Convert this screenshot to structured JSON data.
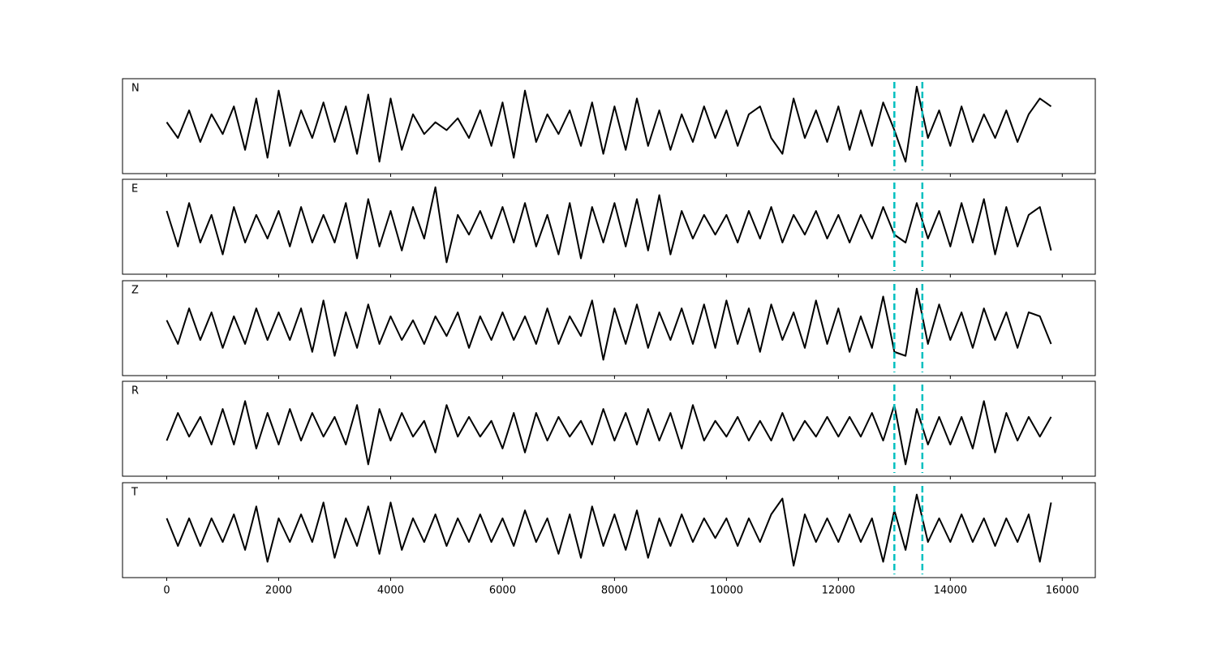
{
  "chart_data": {
    "type": "line",
    "layout": "stacked",
    "x": [
      0,
      200,
      400,
      600,
      800,
      1000,
      1200,
      1400,
      1600,
      1800,
      2000,
      2200,
      2400,
      2600,
      2800,
      3000,
      3200,
      3400,
      3600,
      3800,
      4000,
      4200,
      4400,
      4600,
      4800,
      5000,
      5200,
      5400,
      5600,
      5800,
      6000,
      6200,
      6400,
      6600,
      6800,
      7000,
      7200,
      7400,
      7600,
      7800,
      8000,
      8200,
      8400,
      8600,
      8800,
      9000,
      9200,
      9400,
      9600,
      9800,
      10000,
      10200,
      10400,
      10600,
      10800,
      11000,
      11200,
      11400,
      11600,
      11800,
      12000,
      12200,
      12400,
      12600,
      12800,
      13000,
      13200,
      13400,
      13600,
      13800,
      14000,
      14200,
      14400,
      14600,
      14800,
      15000,
      15200,
      15400,
      15600,
      15800
    ],
    "series": [
      {
        "name": "N",
        "color": "#000000",
        "values": [
          0.1,
          -0.3,
          0.4,
          -0.4,
          0.3,
          -0.2,
          0.5,
          -0.6,
          0.7,
          -0.8,
          0.9,
          -0.5,
          0.4,
          -0.3,
          0.6,
          -0.4,
          0.5,
          -0.7,
          0.8,
          -0.9,
          0.7,
          -0.6,
          0.3,
          -0.2,
          0.1,
          -0.1,
          0.2,
          -0.3,
          0.4,
          -0.5,
          0.6,
          -0.8,
          0.9,
          -0.4,
          0.3,
          -0.2,
          0.4,
          -0.5,
          0.6,
          -0.7,
          0.5,
          -0.6,
          0.7,
          -0.5,
          0.4,
          -0.6,
          0.3,
          -0.4,
          0.5,
          -0.3,
          0.4,
          -0.5,
          0.3,
          0.5,
          -0.3,
          -0.7,
          0.7,
          -0.3,
          0.4,
          -0.4,
          0.5,
          -0.6,
          0.4,
          -0.5,
          0.6,
          -0.1,
          -0.9,
          1.0,
          -0.3,
          0.4,
          -0.5,
          0.5,
          -0.4,
          0.3,
          -0.3,
          0.4,
          -0.4,
          0.3,
          0.7,
          0.5
        ]
      },
      {
        "name": "E",
        "color": "#000000",
        "values": [
          0.4,
          -0.5,
          0.6,
          -0.4,
          0.3,
          -0.7,
          0.5,
          -0.4,
          0.3,
          -0.3,
          0.4,
          -0.5,
          0.5,
          -0.4,
          0.3,
          -0.4,
          0.6,
          -0.8,
          0.7,
          -0.5,
          0.4,
          -0.6,
          0.5,
          -0.3,
          1.0,
          -0.9,
          0.3,
          -0.2,
          0.4,
          -0.3,
          0.5,
          -0.4,
          0.6,
          -0.5,
          0.3,
          -0.7,
          0.6,
          -0.8,
          0.5,
          -0.4,
          0.6,
          -0.5,
          0.7,
          -0.6,
          0.8,
          -0.7,
          0.4,
          -0.3,
          0.3,
          -0.2,
          0.3,
          -0.4,
          0.4,
          -0.3,
          0.5,
          -0.4,
          0.3,
          -0.2,
          0.4,
          -0.3,
          0.3,
          -0.4,
          0.3,
          -0.3,
          0.5,
          -0.2,
          -0.4,
          0.6,
          -0.3,
          0.4,
          -0.5,
          0.6,
          -0.4,
          0.7,
          -0.7,
          0.5,
          -0.5,
          0.3,
          0.5,
          -0.6
        ]
      },
      {
        "name": "Z",
        "color": "#000000",
        "values": [
          0.2,
          -0.4,
          0.5,
          -0.3,
          0.4,
          -0.5,
          0.3,
          -0.4,
          0.5,
          -0.3,
          0.4,
          -0.3,
          0.5,
          -0.6,
          0.7,
          -0.7,
          0.4,
          -0.5,
          0.6,
          -0.4,
          0.3,
          -0.3,
          0.2,
          -0.4,
          0.3,
          -0.2,
          0.4,
          -0.5,
          0.3,
          -0.3,
          0.4,
          -0.3,
          0.3,
          -0.4,
          0.5,
          -0.4,
          0.3,
          -0.2,
          0.7,
          -0.8,
          0.5,
          -0.4,
          0.6,
          -0.5,
          0.4,
          -0.3,
          0.5,
          -0.4,
          0.6,
          -0.5,
          0.7,
          -0.4,
          0.5,
          -0.6,
          0.6,
          -0.3,
          0.4,
          -0.5,
          0.7,
          -0.4,
          0.5,
          -0.6,
          0.3,
          -0.5,
          0.8,
          -0.6,
          -0.7,
          1.0,
          -0.4,
          0.6,
          -0.3,
          0.4,
          -0.5,
          0.5,
          -0.3,
          0.4,
          -0.5,
          0.4,
          0.3,
          -0.4
        ]
      },
      {
        "name": "R",
        "color": "#000000",
        "values": [
          -0.3,
          0.4,
          -0.2,
          0.3,
          -0.4,
          0.5,
          -0.4,
          0.7,
          -0.5,
          0.4,
          -0.4,
          0.5,
          -0.3,
          0.4,
          -0.2,
          0.3,
          -0.4,
          0.6,
          -0.9,
          0.5,
          -0.3,
          0.4,
          -0.2,
          0.2,
          -0.6,
          0.6,
          -0.2,
          0.3,
          -0.2,
          0.2,
          -0.5,
          0.4,
          -0.6,
          0.4,
          -0.3,
          0.3,
          -0.2,
          0.2,
          -0.4,
          0.5,
          -0.3,
          0.4,
          -0.4,
          0.5,
          -0.3,
          0.4,
          -0.5,
          0.6,
          -0.3,
          0.2,
          -0.2,
          0.3,
          -0.3,
          0.2,
          -0.3,
          0.4,
          -0.3,
          0.2,
          -0.2,
          0.3,
          -0.2,
          0.3,
          -0.2,
          0.4,
          -0.3,
          0.6,
          -0.9,
          0.5,
          -0.4,
          0.3,
          -0.4,
          0.3,
          -0.5,
          0.7,
          -0.6,
          0.4,
          -0.3,
          0.3,
          -0.2,
          0.3
        ]
      },
      {
        "name": "T",
        "color": "#000000",
        "values": [
          0.3,
          -0.4,
          0.3,
          -0.4,
          0.3,
          -0.3,
          0.4,
          -0.5,
          0.6,
          -0.8,
          0.3,
          -0.3,
          0.4,
          -0.3,
          0.7,
          -0.7,
          0.3,
          -0.4,
          0.6,
          -0.6,
          0.7,
          -0.5,
          0.3,
          -0.3,
          0.4,
          -0.4,
          0.3,
          -0.3,
          0.4,
          -0.3,
          0.3,
          -0.4,
          0.5,
          -0.3,
          0.3,
          -0.6,
          0.4,
          -0.7,
          0.6,
          -0.4,
          0.4,
          -0.5,
          0.5,
          -0.7,
          0.3,
          -0.4,
          0.4,
          -0.3,
          0.3,
          -0.2,
          0.3,
          -0.4,
          0.3,
          -0.3,
          0.4,
          0.8,
          -0.9,
          0.4,
          -0.3,
          0.3,
          -0.3,
          0.4,
          -0.3,
          0.3,
          -0.8,
          0.5,
          -0.5,
          0.9,
          -0.3,
          0.3,
          -0.3,
          0.4,
          -0.3,
          0.3,
          -0.4,
          0.3,
          -0.3,
          0.4,
          -0.8,
          0.7
        ]
      }
    ],
    "xlim": [
      -790,
      16590
    ],
    "xticks": [
      0,
      2000,
      4000,
      6000,
      8000,
      10000,
      12000,
      14000,
      16000
    ],
    "ylim": [
      -1.2,
      1.2
    ],
    "vlines": [
      13000,
      13500
    ],
    "vline_color": "#00bfbf"
  }
}
